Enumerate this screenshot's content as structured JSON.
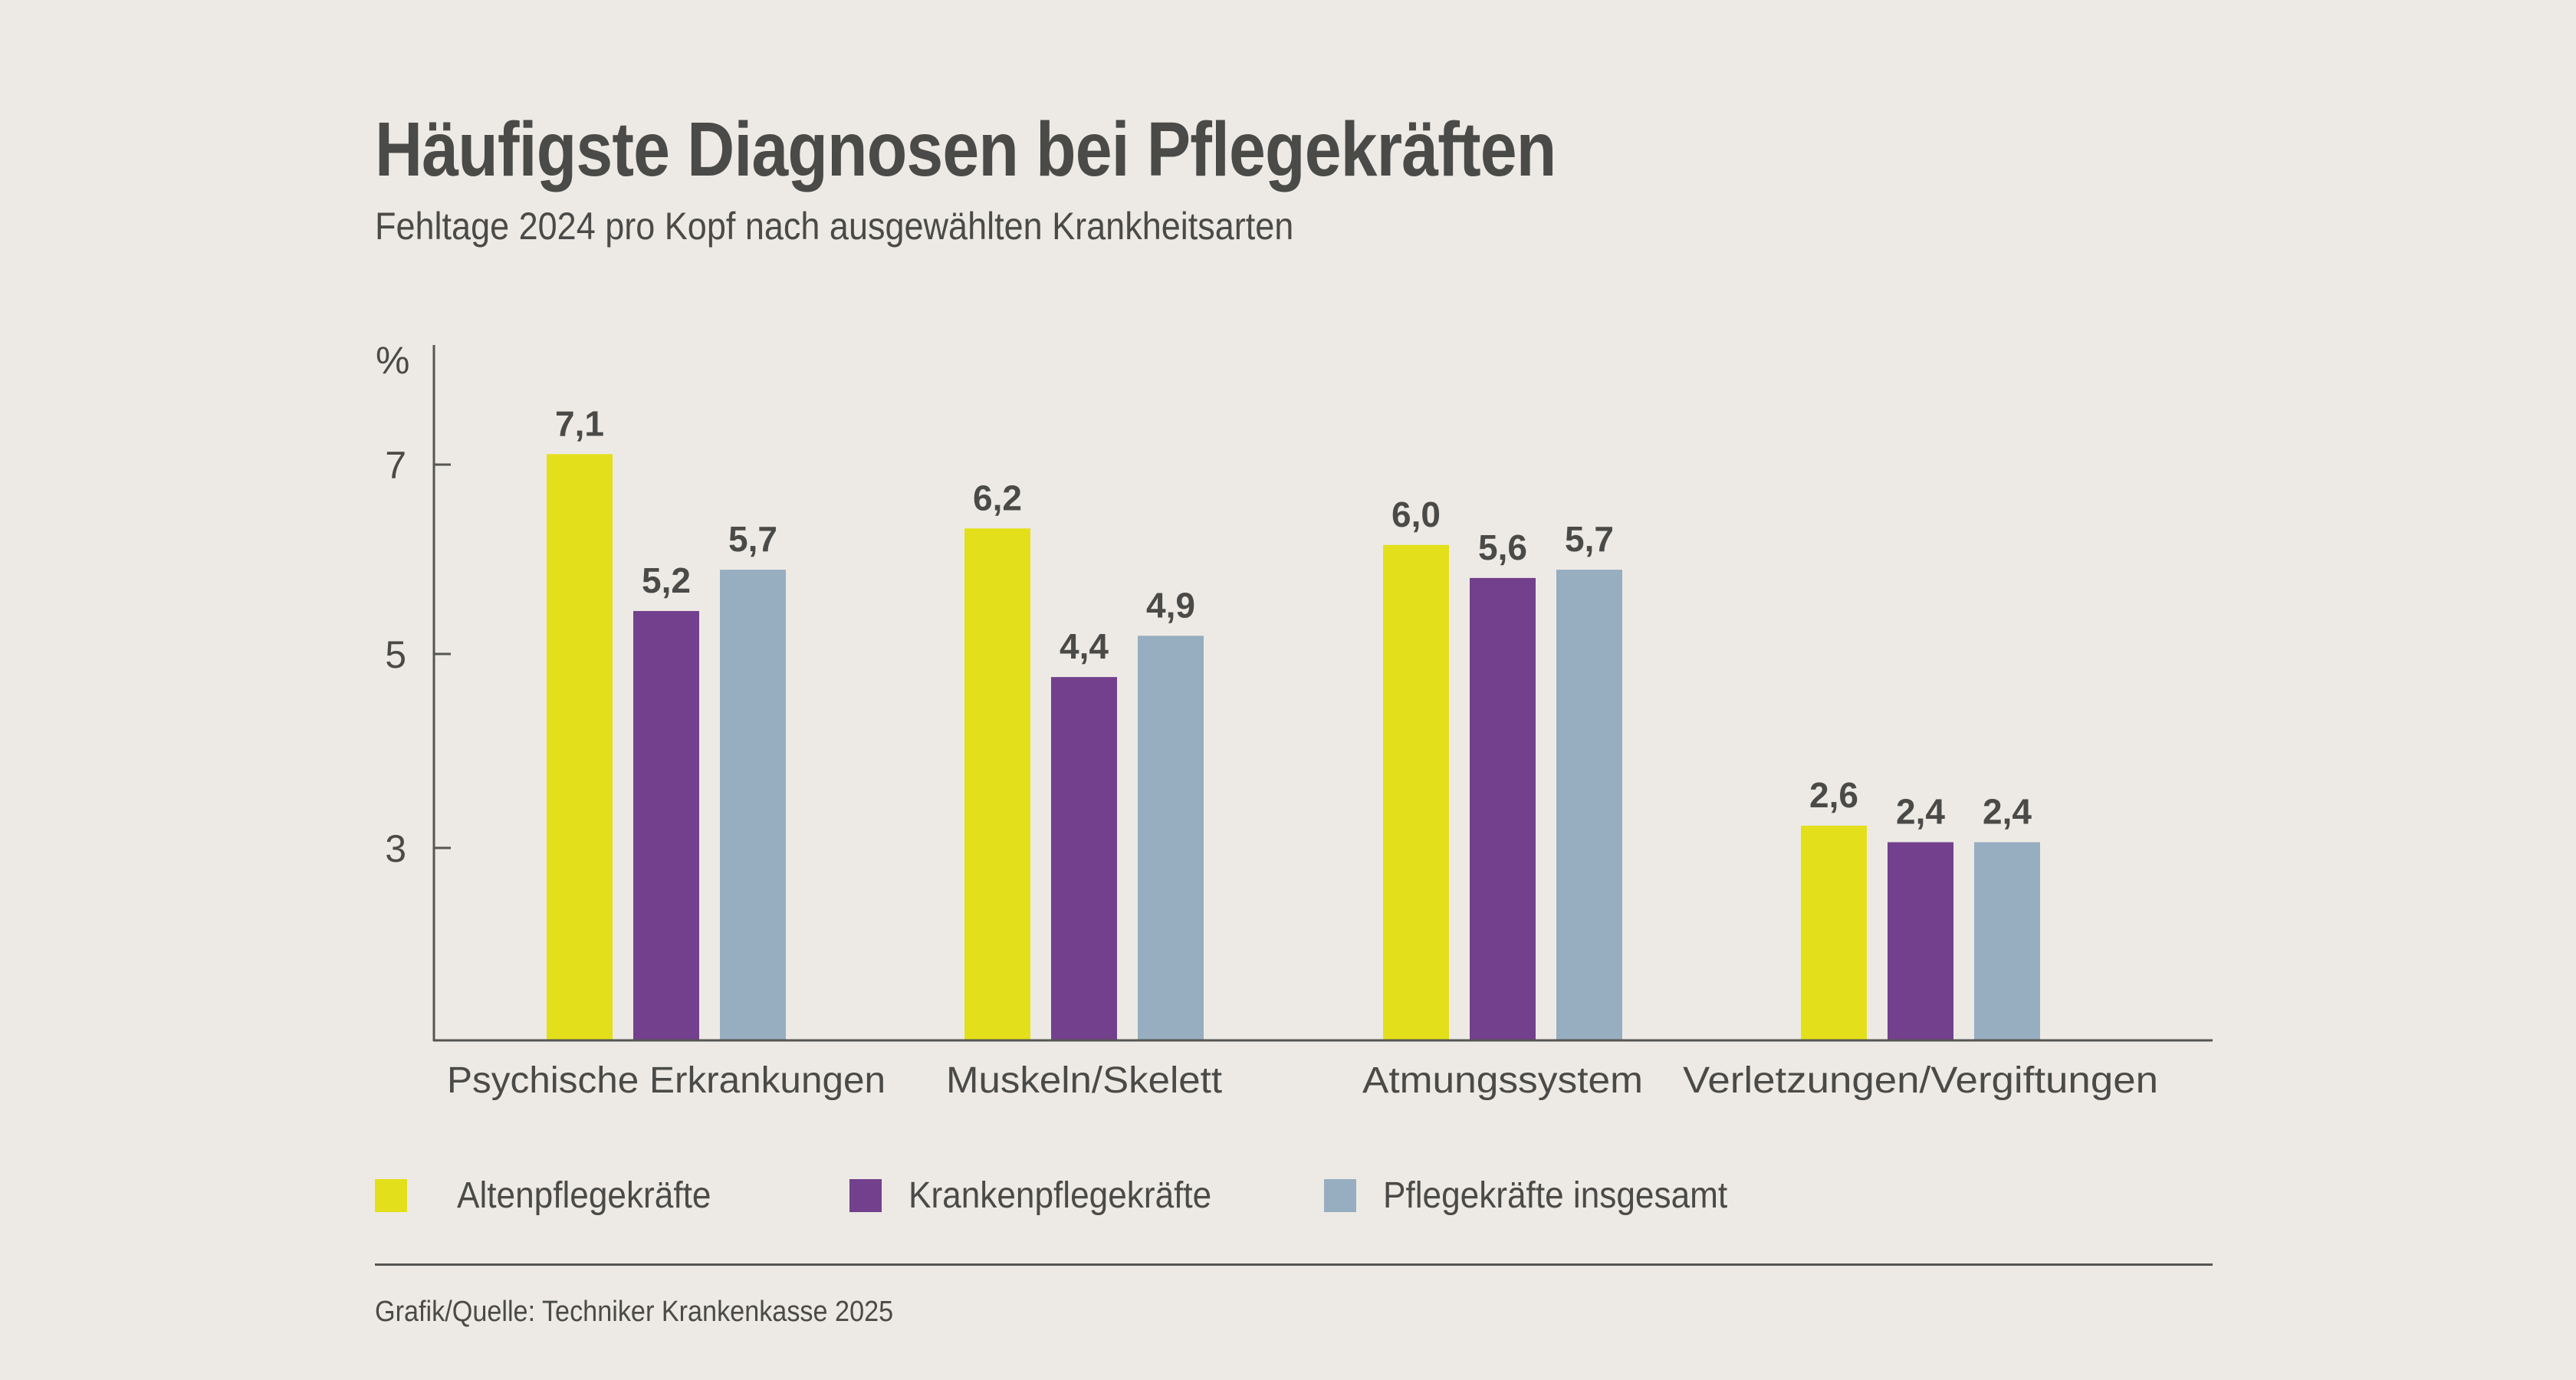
{
  "header": {
    "title": "Häufigste Diagnosen bei Pflegekräften",
    "subtitle": "Fehltage 2024 pro Kopf nach ausgewählten Krankheitsarten"
  },
  "chart_data": {
    "type": "bar",
    "title": "Häufigste Diagnosen bei Pflegekräften",
    "subtitle": "Fehltage 2024 pro Kopf nach ausgewählten Krankheitsarten",
    "xlabel": "",
    "ylabel": "%",
    "y_ticks": [
      "7",
      "5",
      "3"
    ],
    "ylim": [
      0,
      7.8
    ],
    "grid": false,
    "categories": [
      "Psychische Erkrankungen",
      "Muskeln/Skelett",
      "Atmungssystem",
      "Verletzungen/Vergiftungen"
    ],
    "series": [
      {
        "name": "Altenpflegekräfte",
        "color": "#E3E01B",
        "values": [
          7.1,
          6.2,
          6.0,
          2.6
        ],
        "labels": [
          "7,1",
          "6,2",
          "6,0",
          "2,6"
        ]
      },
      {
        "name": "Krankenpflegekräfte",
        "color": "#72408C",
        "values": [
          5.2,
          4.4,
          5.6,
          2.4
        ],
        "labels": [
          "5,2",
          "4,4",
          "5,6",
          "2,4"
        ]
      },
      {
        "name": "Pflegekräfte insgesamt",
        "color": "#97AEC1",
        "values": [
          5.7,
          4.9,
          5.7,
          2.4
        ],
        "labels": [
          "5,7",
          "4,9",
          "5,7",
          "2,4"
        ]
      }
    ],
    "legend_position": "bottom-left"
  },
  "legend": {
    "items": [
      {
        "label": "Altenpflegekräfte",
        "color": "#E3E01B"
      },
      {
        "label": "Krankenpflegekräfte",
        "color": "#72408C"
      },
      {
        "label": "Pflegekräfte insgesamt",
        "color": "#97AEC1"
      }
    ]
  },
  "footer": {
    "source": "Grafik/Quelle: Techniker Krankenkasse 2025"
  }
}
